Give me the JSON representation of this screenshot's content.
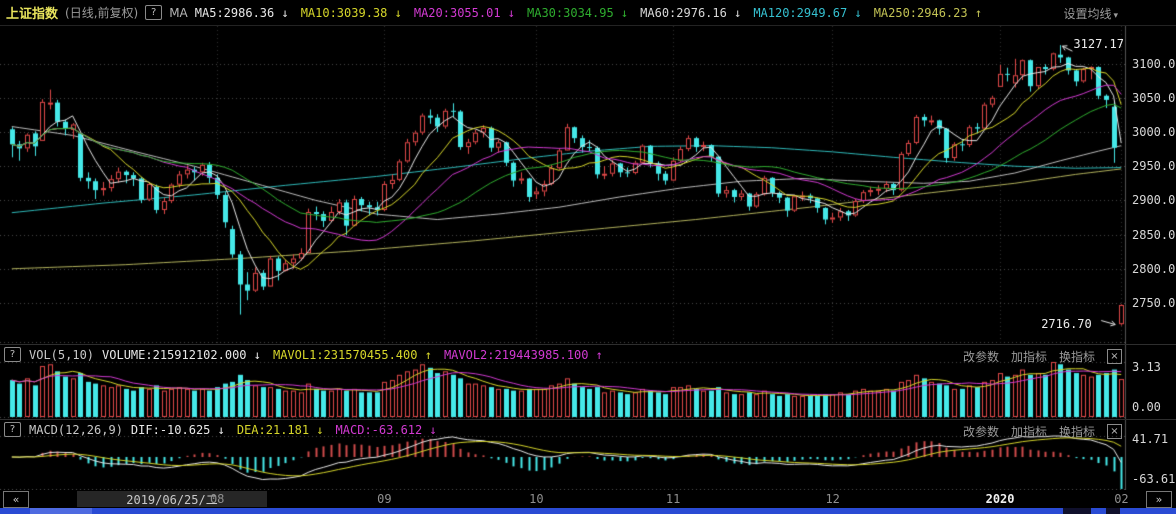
{
  "header": {
    "title": "上证指数",
    "subtitle": "(日线,前复权)",
    "help_icon": "?",
    "ma_prefix": "MA",
    "ma_items": [
      {
        "label": "MA5",
        "value": "2986.36",
        "arrow": "↓",
        "color": "#e8e8e8"
      },
      {
        "label": "MA10",
        "value": "3039.38",
        "arrow": "↓",
        "color": "#d6d62a"
      },
      {
        "label": "MA20",
        "value": "3055.01",
        "arrow": "↓",
        "color": "#d23ad2"
      },
      {
        "label": "MA30",
        "value": "3034.95",
        "arrow": "↓",
        "color": "#2fae2f"
      },
      {
        "label": "MA60",
        "value": "2976.16",
        "arrow": "↓",
        "color": "#d8d8d8"
      },
      {
        "label": "MA120",
        "value": "2949.67",
        "arrow": "↓",
        "color": "#35c0d0"
      },
      {
        "label": "MA250",
        "value": "2946.23",
        "arrow": "↑",
        "color": "#c2c254"
      }
    ],
    "settings_button": "设置均线",
    "settings_caret": "▾"
  },
  "volume_panel": {
    "help_icon": "?",
    "title": "VOL(5,10)",
    "values": [
      {
        "label": "VOLUME",
        "value": "215912102.000",
        "arrow": "↓",
        "color": "#e8e8e8"
      },
      {
        "label": "MAVOL1",
        "value": "231570455.400",
        "arrow": "↑",
        "color": "#d6d62a"
      },
      {
        "label": "MAVOL2",
        "value": "219443985.100",
        "arrow": "↑",
        "color": "#d23ad2"
      }
    ],
    "toolbar": {
      "modify": "改参数",
      "add": "加指标",
      "switch": "换指标",
      "close": "×"
    },
    "axis_max": "3.13",
    "axis_min": "0.00"
  },
  "macd_panel": {
    "help_icon": "?",
    "title": "MACD(12,26,9)",
    "values": [
      {
        "label": "DIF",
        "value": "-10.625",
        "arrow": "↓",
        "color": "#e8e8e8"
      },
      {
        "label": "DEA",
        "value": "21.181",
        "arrow": "↓",
        "color": "#d6d62a"
      },
      {
        "label": "MACD",
        "value": "-63.612",
        "arrow": "↓",
        "color": "#d23ad2"
      }
    ],
    "toolbar": {
      "modify": "改参数",
      "add": "加指标",
      "switch": "换指标",
      "close": "×"
    },
    "axis_max": "41.71",
    "axis_min": "-63.61"
  },
  "date_bar": {
    "back": "«",
    "date": "2019/06/25/二",
    "forward": "»"
  },
  "chart_data": {
    "type": "candlestick",
    "title": "上证指数 日线 前复权 2019/06/25 - 2020/02",
    "price_axis": {
      "ticks": [
        "3100.00",
        "3050.00",
        "3000.00",
        "2950.00",
        "2900.00",
        "2850.00",
        "2800.00",
        "2750.00"
      ],
      "values": [
        3100,
        3050,
        3000,
        2950,
        2900,
        2850,
        2800,
        2750
      ],
      "range": [
        2690,
        3155
      ]
    },
    "volume_axis": {
      "max": 3.13,
      "min": 0.0
    },
    "macd_axis": {
      "max": 41.71,
      "min": -63.61
    },
    "month_ticks": [
      {
        "label": "08",
        "index": 27
      },
      {
        "label": "09",
        "index": 49
      },
      {
        "label": "10",
        "index": 69
      },
      {
        "label": "11",
        "index": 87
      },
      {
        "label": "12",
        "index": 108
      },
      {
        "label": "2020",
        "index": 130,
        "strong": true
      },
      {
        "label": "02",
        "index": 146
      }
    ],
    "annotations": [
      {
        "text": "3127.17",
        "index": 138,
        "anchor": "high",
        "side": "right"
      },
      {
        "text": "2716.70",
        "index": 146,
        "anchor": "low",
        "side": "left"
      }
    ],
    "colors": {
      "up": "#e04848",
      "down": "#45e8e8",
      "ma5": "#e6e6e6",
      "ma10": "#d6d62a",
      "ma20": "#d23ad2",
      "ma30": "#2fae2f",
      "ma60": "#bdbdbd",
      "ma120": "#2fbcbc",
      "ma250": "#b5b55e",
      "dif": "#e8e8e8",
      "dea": "#d6d62a",
      "macd_up": "#cf4b4b",
      "macd_down": "#45e8e8",
      "mavol1": "#d6d62a",
      "mavol2": "#d23ad2",
      "grid": "#4a4a4a",
      "grid_v": "#303030",
      "axis_line": "#555555"
    },
    "candles": [
      [
        3004,
        3007,
        2963,
        2982
      ],
      [
        2982,
        2987,
        2958,
        2976
      ],
      [
        2976,
        2998,
        2971,
        2996
      ],
      [
        2998,
        3001,
        2965,
        2979
      ],
      [
        2987,
        3048,
        2987,
        3044
      ],
      [
        3041,
        3062,
        3033,
        3043
      ],
      [
        3043,
        3047,
        3008,
        3015
      ],
      [
        3015,
        3018,
        2995,
        3005
      ],
      [
        3003,
        3013,
        2990,
        3011
      ],
      [
        2998,
        2999,
        2928,
        2933
      ],
      [
        2933,
        2941,
        2917,
        2928
      ],
      [
        2928,
        2932,
        2902,
        2915
      ],
      [
        2915,
        2927,
        2907,
        2918
      ],
      [
        2918,
        2937,
        2913,
        2931
      ],
      [
        2931,
        2948,
        2926,
        2942
      ],
      [
        2942,
        2944,
        2925,
        2937
      ],
      [
        2937,
        2941,
        2921,
        2932
      ],
      [
        2932,
        2934,
        2896,
        2901
      ],
      [
        2901,
        2926,
        2899,
        2924
      ],
      [
        2920,
        2923,
        2881,
        2886
      ],
      [
        2886,
        2904,
        2880,
        2899
      ],
      [
        2899,
        2925,
        2896,
        2923
      ],
      [
        2923,
        2943,
        2919,
        2938
      ],
      [
        2938,
        2951,
        2932,
        2945
      ],
      [
        2945,
        2949,
        2929,
        2941
      ],
      [
        2941,
        2955,
        2936,
        2952
      ],
      [
        2952,
        2956,
        2925,
        2933
      ],
      [
        2933,
        2938,
        2902,
        2908
      ],
      [
        2908,
        2912,
        2860,
        2868
      ],
      [
        2858,
        2863,
        2816,
        2821
      ],
      [
        2821,
        2826,
        2733,
        2777
      ],
      [
        2777,
        2795,
        2754,
        2768
      ],
      [
        2768,
        2802,
        2766,
        2794
      ],
      [
        2794,
        2798,
        2769,
        2774
      ],
      [
        2774,
        2819,
        2774,
        2815
      ],
      [
        2815,
        2818,
        2783,
        2797
      ],
      [
        2797,
        2813,
        2796,
        2808
      ],
      [
        2808,
        2821,
        2800,
        2815
      ],
      [
        2815,
        2830,
        2812,
        2823
      ],
      [
        2823,
        2888,
        2823,
        2883
      ],
      [
        2883,
        2891,
        2871,
        2880
      ],
      [
        2880,
        2884,
        2861,
        2870
      ],
      [
        2870,
        2891,
        2868,
        2883
      ],
      [
        2883,
        2902,
        2879,
        2897
      ],
      [
        2897,
        2901,
        2849,
        2863
      ],
      [
        2863,
        2907,
        2862,
        2902
      ],
      [
        2902,
        2905,
        2884,
        2893
      ],
      [
        2893,
        2898,
        2878,
        2890
      ],
      [
        2890,
        2898,
        2878,
        2886
      ],
      [
        2886,
        2928,
        2884,
        2924
      ],
      [
        2924,
        2938,
        2917,
        2930
      ],
      [
        2930,
        2960,
        2928,
        2957
      ],
      [
        2957,
        2990,
        2955,
        2985
      ],
      [
        2985,
        3002,
        2980,
        2999
      ],
      [
        2999,
        3027,
        2996,
        3024
      ],
      [
        3024,
        3033,
        3012,
        3021
      ],
      [
        3021,
        3026,
        3000,
        3008
      ],
      [
        3008,
        3034,
        3005,
        3031
      ],
      [
        3031,
        3042,
        3022,
        3030
      ],
      [
        3030,
        3032,
        2974,
        2978
      ],
      [
        2978,
        2990,
        2968,
        2985
      ],
      [
        2985,
        3003,
        2982,
        2999
      ],
      [
        2999,
        3010,
        2992,
        3006
      ],
      [
        3006,
        3008,
        2971,
        2977
      ],
      [
        2977,
        2989,
        2970,
        2985
      ],
      [
        2985,
        2986,
        2950,
        2955
      ],
      [
        2955,
        2957,
        2920,
        2929
      ],
      [
        2929,
        2941,
        2924,
        2932
      ],
      [
        2932,
        2933,
        2898,
        2905
      ],
      [
        2909,
        2919,
        2902,
        2913
      ],
      [
        2913,
        2929,
        2906,
        2924
      ],
      [
        2924,
        2952,
        2922,
        2947
      ],
      [
        2947,
        2976,
        2945,
        2973
      ],
      [
        2973,
        3012,
        2973,
        3007
      ],
      [
        3007,
        3008,
        2984,
        2991
      ],
      [
        2991,
        2995,
        2970,
        2978
      ],
      [
        2978,
        2988,
        2972,
        2977
      ],
      [
        2977,
        2979,
        2932,
        2938
      ],
      [
        2938,
        2950,
        2931,
        2939
      ],
      [
        2939,
        2959,
        2935,
        2954
      ],
      [
        2954,
        2955,
        2934,
        2941
      ],
      [
        2941,
        2948,
        2934,
        2940
      ],
      [
        2940,
        2958,
        2938,
        2955
      ],
      [
        2955,
        2982,
        2953,
        2980
      ],
      [
        2980,
        2981,
        2948,
        2954
      ],
      [
        2954,
        2957,
        2929,
        2939
      ],
      [
        2939,
        2943,
        2923,
        2929
      ],
      [
        2929,
        2963,
        2928,
        2958
      ],
      [
        2958,
        2979,
        2956,
        2975
      ],
      [
        2975,
        2995,
        2972,
        2991
      ],
      [
        2991,
        2993,
        2971,
        2978
      ],
      [
        2978,
        2986,
        2972,
        2981
      ],
      [
        2981,
        2982,
        2956,
        2964
      ],
      [
        2964,
        2964,
        2905,
        2910
      ],
      [
        2910,
        2921,
        2904,
        2915
      ],
      [
        2915,
        2917,
        2897,
        2905
      ],
      [
        2905,
        2915,
        2900,
        2910
      ],
      [
        2910,
        2911,
        2885,
        2891
      ],
      [
        2891,
        2912,
        2889,
        2909
      ],
      [
        2909,
        2936,
        2907,
        2933
      ],
      [
        2933,
        2934,
        2905,
        2911
      ],
      [
        2911,
        2913,
        2896,
        2904
      ],
      [
        2904,
        2905,
        2876,
        2885
      ],
      [
        2885,
        2908,
        2883,
        2906
      ],
      [
        2906,
        2913,
        2899,
        2907
      ],
      [
        2907,
        2910,
        2896,
        2903
      ],
      [
        2903,
        2904,
        2882,
        2889
      ],
      [
        2889,
        2890,
        2865,
        2872
      ],
      [
        2872,
        2882,
        2867,
        2875
      ],
      [
        2875,
        2889,
        2870,
        2884
      ],
      [
        2884,
        2886,
        2870,
        2878
      ],
      [
        2878,
        2902,
        2876,
        2899
      ],
      [
        2899,
        2915,
        2896,
        2912
      ],
      [
        2912,
        2920,
        2906,
        2915
      ],
      [
        2915,
        2922,
        2908,
        2917
      ],
      [
        2917,
        2928,
        2912,
        2924
      ],
      [
        2924,
        2926,
        2908,
        2915
      ],
      [
        2915,
        2971,
        2913,
        2968
      ],
      [
        2968,
        2988,
        2965,
        2984
      ],
      [
        2984,
        3025,
        2982,
        3022
      ],
      [
        3022,
        3026,
        3008,
        3017
      ],
      [
        3017,
        3024,
        3010,
        3017
      ],
      [
        3017,
        3018,
        2996,
        3005
      ],
      [
        3005,
        3006,
        2955,
        2962
      ],
      [
        2962,
        2985,
        2958,
        2982
      ],
      [
        2982,
        2988,
        2972,
        2981
      ],
      [
        2981,
        3010,
        2978,
        3007
      ],
      [
        3007,
        3013,
        2998,
        3005
      ],
      [
        3005,
        3043,
        3003,
        3040
      ],
      [
        3040,
        3053,
        3036,
        3050
      ],
      [
        3066,
        3098,
        3066,
        3085
      ],
      [
        3085,
        3094,
        3074,
        3084
      ],
      [
        3071,
        3107,
        3065,
        3083
      ],
      [
        3083,
        3106,
        3076,
        3105
      ],
      [
        3105,
        3106,
        3059,
        3067
      ],
      [
        3067,
        3095,
        3063,
        3095
      ],
      [
        3095,
        3099,
        3084,
        3092
      ],
      [
        3092,
        3116,
        3090,
        3115
      ],
      [
        3113,
        3127,
        3101,
        3109
      ],
      [
        3109,
        3110,
        3084,
        3090
      ],
      [
        3090,
        3092,
        3067,
        3074
      ],
      [
        3074,
        3094,
        3072,
        3092
      ],
      [
        3092,
        3096,
        3077,
        3095
      ],
      [
        3095,
        3096,
        3048,
        3053
      ],
      [
        3053,
        3055,
        3035,
        3047
      ],
      [
        3037,
        3045,
        2955,
        2977
      ],
      [
        2719,
        2748,
        2717,
        2747
      ]
    ],
    "volumes": [
      2.1,
      1.9,
      2.2,
      1.8,
      2.9,
      3.0,
      2.6,
      2.3,
      2.2,
      2.5,
      2.0,
      1.9,
      1.8,
      1.7,
      1.8,
      1.6,
      1.5,
      1.7,
      1.6,
      1.8,
      1.5,
      1.6,
      1.7,
      1.6,
      1.5,
      1.6,
      1.5,
      1.7,
      1.9,
      2.0,
      2.4,
      2.1,
      1.8,
      1.7,
      1.7,
      1.6,
      1.5,
      1.5,
      1.4,
      1.9,
      1.6,
      1.5,
      1.5,
      1.6,
      1.5,
      1.6,
      1.4,
      1.4,
      1.4,
      2.0,
      2.1,
      2.4,
      2.6,
      2.7,
      3.0,
      2.8,
      2.5,
      2.6,
      2.4,
      2.2,
      1.9,
      1.9,
      1.8,
      1.7,
      1.6,
      1.6,
      1.5,
      1.5,
      1.6,
      1.6,
      1.6,
      1.8,
      1.9,
      2.2,
      1.9,
      1.7,
      1.6,
      1.7,
      1.4,
      1.5,
      1.4,
      1.3,
      1.4,
      1.6,
      1.5,
      1.4,
      1.3,
      1.7,
      1.7,
      1.8,
      1.6,
      1.5,
      1.5,
      1.7,
      1.4,
      1.3,
      1.3,
      1.4,
      1.3,
      1.5,
      1.3,
      1.2,
      1.3,
      1.2,
      1.2,
      1.2,
      1.2,
      1.3,
      1.3,
      1.4,
      1.3,
      1.5,
      1.6,
      1.5,
      1.5,
      1.6,
      1.5,
      2.0,
      2.1,
      2.4,
      2.2,
      2.0,
      1.9,
      1.8,
      1.6,
      1.6,
      1.8,
      1.7,
      2.0,
      2.1,
      2.5,
      2.3,
      2.4,
      2.7,
      2.4,
      2.5,
      2.4,
      3.13,
      3.0,
      2.7,
      2.5,
      2.4,
      2.3,
      2.4,
      2.5,
      2.7,
      2.16
    ],
    "ma_overlays": {
      "ma60": [
        [
          0,
          3008
        ],
        [
          8,
          2995
        ],
        [
          16,
          2972
        ],
        [
          24,
          2950
        ],
        [
          32,
          2925
        ],
        [
          40,
          2900
        ],
        [
          48,
          2880
        ],
        [
          56,
          2872
        ],
        [
          64,
          2880
        ],
        [
          72,
          2890
        ],
        [
          80,
          2905
        ],
        [
          88,
          2918
        ],
        [
          96,
          2928
        ],
        [
          104,
          2932
        ],
        [
          112,
          2928
        ],
        [
          120,
          2925
        ],
        [
          126,
          2928
        ],
        [
          132,
          2940
        ],
        [
          138,
          2958
        ],
        [
          143,
          2972
        ],
        [
          146,
          2980
        ]
      ],
      "ma120": [
        [
          0,
          2882
        ],
        [
          12,
          2896
        ],
        [
          24,
          2908
        ],
        [
          36,
          2922
        ],
        [
          48,
          2935
        ],
        [
          58,
          2948
        ],
        [
          68,
          2962
        ],
        [
          76,
          2972
        ],
        [
          84,
          2979
        ],
        [
          92,
          2980
        ],
        [
          100,
          2977
        ],
        [
          108,
          2971
        ],
        [
          116,
          2963
        ],
        [
          124,
          2956
        ],
        [
          132,
          2950
        ],
        [
          140,
          2947
        ],
        [
          146,
          2948
        ]
      ],
      "ma250": [
        [
          0,
          2800
        ],
        [
          15,
          2806
        ],
        [
          30,
          2815
        ],
        [
          45,
          2826
        ],
        [
          60,
          2840
        ],
        [
          75,
          2856
        ],
        [
          90,
          2872
        ],
        [
          105,
          2890
        ],
        [
          120,
          2910
        ],
        [
          132,
          2925
        ],
        [
          140,
          2938
        ],
        [
          146,
          2946
        ]
      ]
    }
  }
}
